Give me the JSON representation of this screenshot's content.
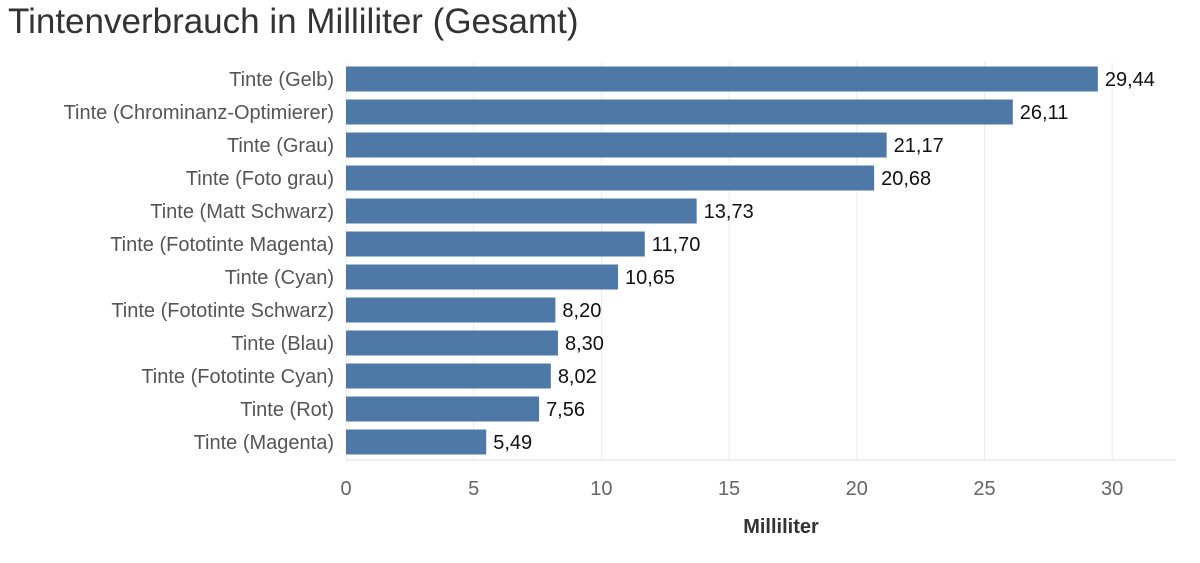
{
  "chart_data": {
    "type": "bar",
    "orientation": "horizontal",
    "title": "Tintenverbrauch in Milliliter (Gesamt)",
    "xlabel": "Milliliter",
    "ylabel": "",
    "xlim": [
      0,
      32.5
    ],
    "ticks": [
      0,
      5,
      10,
      15,
      20,
      25,
      30
    ],
    "tick_labels": [
      "0",
      "5",
      "10",
      "15",
      "20",
      "25",
      "30"
    ],
    "grid": "vertical",
    "bar_color": "#4e79a7",
    "categories": [
      "Tinte (Gelb)",
      "Tinte (Chrominanz-Optimierer)",
      "Tinte (Grau)",
      "Tinte (Foto grau)",
      "Tinte (Matt Schwarz)",
      "Tinte (Fototinte Magenta)",
      "Tinte (Cyan)",
      "Tinte (Fototinte Schwarz)",
      "Tinte (Blau)",
      "Tinte (Fototinte Cyan)",
      "Tinte (Rot)",
      "Tinte (Magenta)"
    ],
    "values": [
      29.44,
      26.11,
      21.17,
      20.68,
      13.73,
      11.7,
      10.65,
      8.2,
      8.3,
      8.02,
      7.56,
      5.49
    ],
    "value_labels": [
      "29,44",
      "26,11",
      "21,17",
      "20,68",
      "13,73",
      "11,70",
      "10,65",
      "8,20",
      "8,30",
      "8,02",
      "7,56",
      "5,49"
    ]
  }
}
